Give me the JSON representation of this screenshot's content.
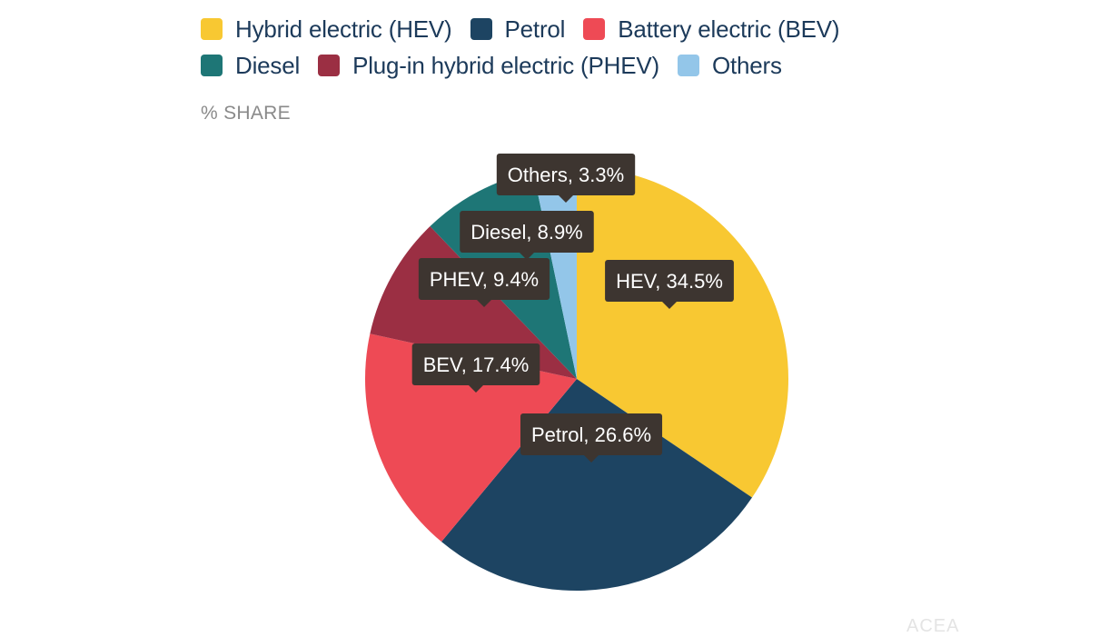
{
  "chart_data": {
    "type": "pie",
    "subtitle": "% SHARE",
    "legend_position": "top-left",
    "slices": [
      {
        "name": "Hybrid electric (HEV)",
        "label": "HEV, 34.5%",
        "value": 34.5,
        "color": "#f8c832"
      },
      {
        "name": "Petrol",
        "label": "Petrol, 26.6%",
        "value": 26.6,
        "color": "#1d4462"
      },
      {
        "name": "Battery electric (BEV)",
        "label": "BEV, 17.4%",
        "value": 17.4,
        "color": "#ee4a55"
      },
      {
        "name": "Plug-in hybrid electric (PHEV)",
        "label": "PHEV, 9.4%",
        "value": 9.4,
        "color": "#9b2f43"
      },
      {
        "name": "Diesel",
        "label": "Diesel, 8.9%",
        "value": 8.9,
        "color": "#1e7676"
      },
      {
        "name": "Others",
        "label": "Others, 3.3%",
        "value": 3.3,
        "color": "#93c6e9"
      }
    ],
    "tooltip_color": "#3d3530"
  },
  "legend": {
    "rows": [
      [
        {
          "label": "Hybrid electric (HEV)",
          "color": "#f8c832"
        },
        {
          "label": "Petrol",
          "color": "#1d4462"
        },
        {
          "label": "Battery electric (BEV)",
          "color": "#ee4a55"
        }
      ],
      [
        {
          "label": "Diesel",
          "color": "#1e7676"
        },
        {
          "label": "Plug-in hybrid electric (PHEV)",
          "color": "#9b2f43"
        },
        {
          "label": "Others",
          "color": "#93c6e9"
        }
      ]
    ]
  },
  "watermark": "ACEA"
}
